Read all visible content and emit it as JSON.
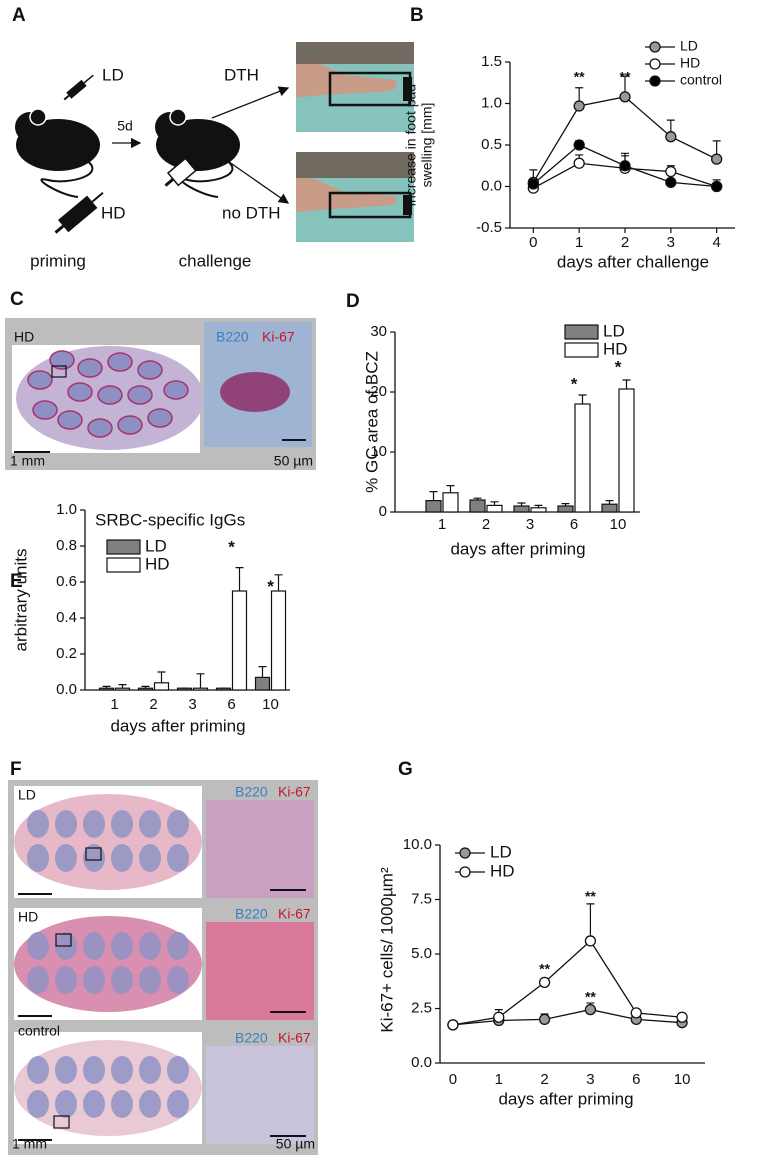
{
  "panel_labels": [
    "A",
    "B",
    "C",
    "D",
    "E",
    "F",
    "G"
  ],
  "panel_a": {
    "ld": "LD",
    "hd": "HD",
    "interval": "5d",
    "dth": "DTH",
    "no_dth": "no DTH",
    "priming": "priming",
    "challenge": "challenge"
  },
  "panel_c": {
    "group": "HD",
    "stain_1": "B220",
    "stain_2": "Ki-67",
    "scale_left": "1 mm",
    "scale_right": "50 µm"
  },
  "panel_f": {
    "rows": [
      {
        "group": "LD",
        "stain_1": "B220",
        "stain_2": "Ki-67"
      },
      {
        "group": "HD",
        "stain_1": "B220",
        "stain_2": "Ki-67"
      },
      {
        "group": "control",
        "stain_1": "B220",
        "stain_2": "Ki-67"
      }
    ],
    "scale_left": "1 mm",
    "scale_right": "50 µm"
  },
  "chart_data": [
    {
      "type": "line",
      "ylabel": [
        "increase in foot pad",
        "swelling [mm]"
      ],
      "xlabel": "days after challenge",
      "x": [
        0,
        1,
        2,
        3,
        4
      ],
      "xlim": [
        -0.4,
        4.4
      ],
      "xticks": [
        0,
        1,
        2,
        3,
        4
      ],
      "ylim": [
        -0.5,
        1.5
      ],
      "yticks": [
        -0.5,
        {
          "value": 0,
          "label": "0.0"
        },
        0.5,
        {
          "value": 1,
          "label": "1.0"
        },
        1.5
      ],
      "legend": "upper right",
      "series": [
        {
          "name": "LD",
          "color": "#999999",
          "values": [
            0.05,
            0.97,
            1.08,
            0.6,
            0.33
          ],
          "errors": [
            0.15,
            0.22,
            0.25,
            0.2,
            0.22
          ]
        },
        {
          "name": "HD",
          "color": "#ffffff",
          "values": [
            -0.02,
            0.28,
            0.22,
            0.18,
            0.0
          ],
          "errors": [
            0.1,
            0.1,
            0.15,
            0.07,
            0.08
          ]
        },
        {
          "name": "control",
          "color": "#000000",
          "values": [
            0.03,
            0.5,
            0.25,
            0.05,
            0.0
          ],
          "errors": [
            0.05,
            0.05,
            0.15,
            0.0,
            0.0
          ]
        }
      ],
      "annotations": [
        {
          "text": "**",
          "x": 1,
          "y": 1.31
        },
        {
          "text": "**",
          "x": 2,
          "y": 1.31
        }
      ]
    },
    {
      "type": "bar",
      "ylabel": "% GC area of BCZ",
      "xlabel": "days after priming",
      "categories": [
        "1",
        "2",
        "3",
        "6",
        "10"
      ],
      "ylim": [
        0,
        30
      ],
      "yticks": [
        0,
        10,
        20,
        30
      ],
      "legend": "upper right",
      "series": [
        {
          "name": "LD",
          "color": "#808080",
          "values": [
            1.9,
            2.0,
            1.0,
            1.0,
            1.3
          ],
          "errors": [
            1.5,
            0.3,
            0.5,
            0.4,
            0.6
          ]
        },
        {
          "name": "HD",
          "color": "#ffffff",
          "values": [
            3.2,
            1.1,
            0.7,
            18,
            20.5
          ],
          "errors": [
            1.2,
            0.6,
            0.4,
            1.5,
            1.5
          ]
        }
      ],
      "annotations": [
        {
          "text": "*",
          "x": "6",
          "y": 21.2
        },
        {
          "text": "*",
          "x": "10",
          "y": 24
        }
      ]
    },
    {
      "type": "bar",
      "title": "SRBC-specific IgGs",
      "ylabel": "arbitrary units",
      "xlabel": "days after priming",
      "categories": [
        "1",
        "2",
        "3",
        "6",
        "10"
      ],
      "ylim": [
        0,
        1
      ],
      "yticks": [
        {
          "value": 0,
          "label": "0.0"
        },
        0.2,
        0.4,
        0.6,
        0.8,
        {
          "value": 1,
          "label": "1.0"
        }
      ],
      "legend": "upper left",
      "series": [
        {
          "name": "LD",
          "color": "#808080",
          "values": [
            0.01,
            0.01,
            0.01,
            0.01,
            0.07
          ],
          "errors": [
            0.01,
            0.01,
            0.0,
            0.0,
            0.06
          ]
        },
        {
          "name": "HD",
          "color": "#ffffff",
          "values": [
            0.01,
            0.04,
            0.01,
            0.55,
            0.55
          ],
          "errors": [
            0.02,
            0.06,
            0.08,
            0.13,
            0.09
          ]
        }
      ],
      "annotations": [
        {
          "text": "*",
          "x": "6",
          "y": 0.79
        },
        {
          "text": "*",
          "x": "10",
          "y": 0.57
        }
      ]
    },
    {
      "type": "line",
      "ylabel": "Ki-67+ cells/ 1000µm²",
      "xlabel": "days after priming",
      "categories": [
        "0",
        "1",
        "2",
        "3",
        "6",
        "10"
      ],
      "ylim": [
        0,
        10
      ],
      "yticks": [
        {
          "value": 0,
          "label": "0.0"
        },
        2.5,
        {
          "value": 5,
          "label": "5.0"
        },
        7.5,
        {
          "value": 10,
          "label": "10.0"
        }
      ],
      "legend": "upper left",
      "series": [
        {
          "name": "LD",
          "color": "#999999",
          "values": [
            1.75,
            1.95,
            2.0,
            2.45,
            2.0,
            1.85
          ],
          "errors": [
            0.0,
            0.1,
            0.25,
            0.3,
            0.1,
            0.1
          ]
        },
        {
          "name": "HD",
          "color": "#ffffff",
          "values": [
            1.75,
            2.1,
            3.7,
            5.6,
            2.3,
            2.1
          ],
          "errors": [
            0.0,
            0.35,
            0.15,
            1.7,
            0.1,
            0.1
          ]
        }
      ],
      "annotations": [
        {
          "text": "**",
          "x": "2",
          "y": 4.27
        },
        {
          "text": "**",
          "x": "3",
          "y": 7.6
        },
        {
          "text": "**",
          "x": "3",
          "y": 3.0
        }
      ]
    }
  ]
}
